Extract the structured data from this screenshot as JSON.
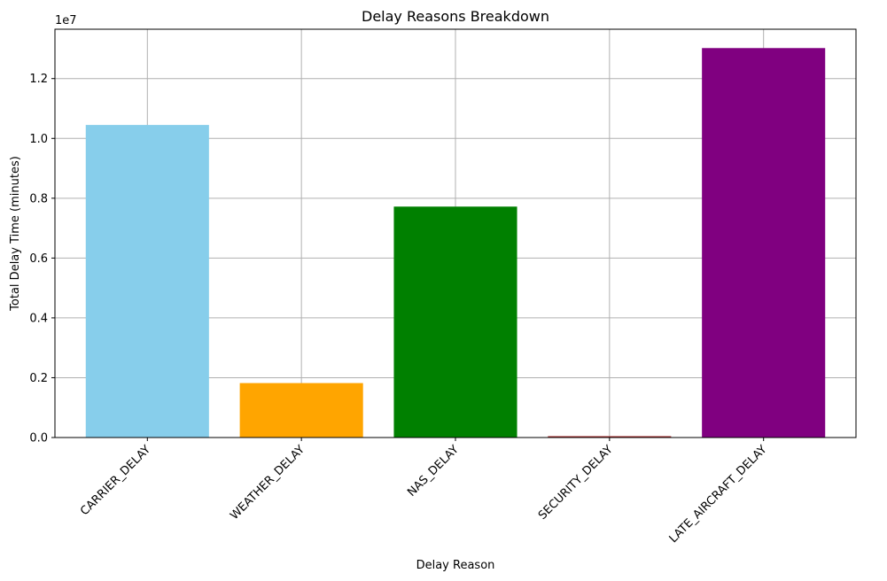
{
  "chart_data": {
    "type": "bar",
    "title": "Delay Reasons Breakdown",
    "xlabel": "Delay Reason",
    "ylabel": "Total Delay Time (minutes)",
    "y_offset_label": "1e7",
    "categories": [
      "CARRIER_DELAY",
      "WEATHER_DELAY",
      "NAS_DELAY",
      "SECURITY_DELAY",
      "LATE_AIRCRAFT_DELAY"
    ],
    "values": [
      10450000,
      1820000,
      7720000,
      45000,
      13020000
    ],
    "colors": [
      "#87ceeb",
      "#ffa500",
      "#008000",
      "#a52a2a",
      "#800080"
    ],
    "ylim": [
      0,
      13650000
    ],
    "yticks": [
      0,
      2000000,
      4000000,
      6000000,
      8000000,
      10000000,
      12000000
    ],
    "ytick_labels": [
      "0.0",
      "0.2",
      "0.4",
      "0.6",
      "0.8",
      "1.0",
      "1.2"
    ],
    "grid": true,
    "x_tick_rotation": -45
  }
}
